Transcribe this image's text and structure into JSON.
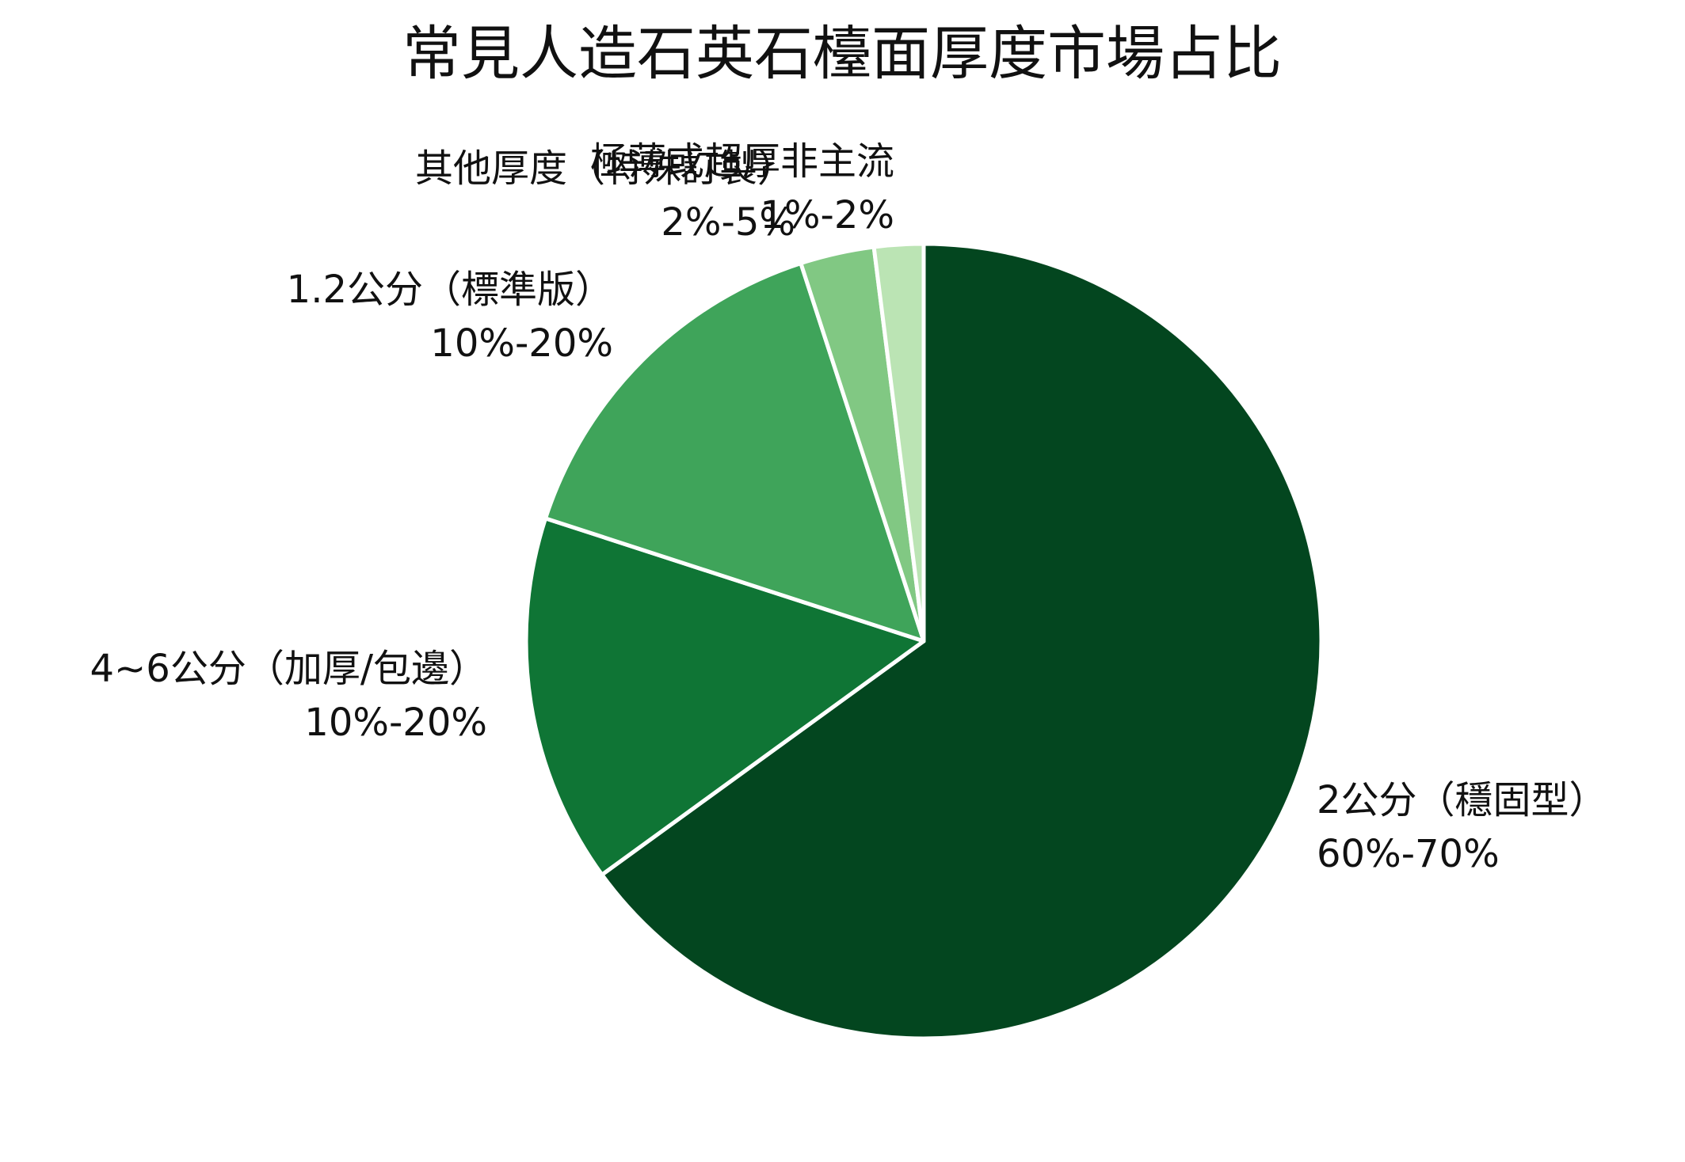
{
  "chart_data": {
    "type": "pie",
    "title": "常見人造石英石檯面厚度市場占比",
    "start_angle": "12 o'clock",
    "direction": "clockwise",
    "legend": "none",
    "slices": [
      {
        "label": "2公分（穩固型）",
        "range": "60%-70%",
        "value": 65,
        "color": "#03461f"
      },
      {
        "label": "4~6公分（加厚/包邊）",
        "range": "10%-20%",
        "value": 15,
        "color": "#0f7535"
      },
      {
        "label": "1.2公分（標準版）",
        "range": "10%-20%",
        "value": 15,
        "color": "#3fa45a"
      },
      {
        "label": "其他厚度（特殊訂製）",
        "range": "2%-5%",
        "value": 3,
        "color": "#81c883"
      },
      {
        "label": "極薄或超厚非主流",
        "range": "1%-2%",
        "value": 2,
        "color": "#bbe4b4"
      }
    ]
  }
}
